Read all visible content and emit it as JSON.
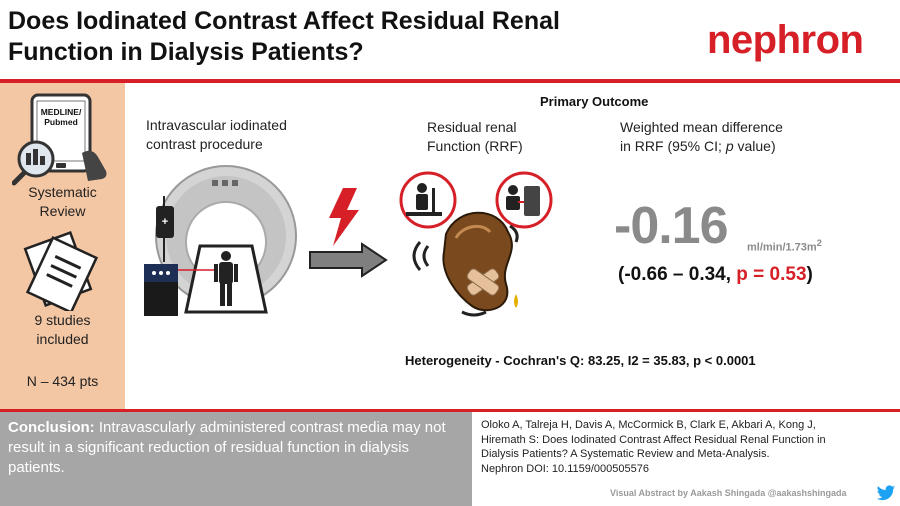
{
  "header": {
    "title_line1": "Does Iodinated Contrast Affect Residual Renal",
    "title_line2": "Function in Dialysis Patients?",
    "brand": "nephron"
  },
  "sidebar": {
    "tablet_line1": "MEDLINE/",
    "tablet_line2": "Pubmed",
    "review_line1": "Systematic",
    "review_line2": "Review",
    "studies_line1": "9 studies",
    "studies_line2": "included",
    "patients": "N – 434 pts"
  },
  "main": {
    "procedure_line1": "Intravascular iodinated",
    "procedure_line2": "contrast procedure",
    "rrf_line1": "Residual renal",
    "rrf_line2": "Function (RRF)",
    "primary_outcome": "Primary Outcome",
    "wmd_line1": "Weighted mean difference",
    "wmd_line2_pre": "in RRF (95% CI; ",
    "wmd_line2_p": "p",
    "wmd_line2_post": " value)",
    "big_value": "-0.16",
    "unit": "ml/min/1.73m",
    "unit_sup": "2",
    "ci_text": "(-0.66 – 0.34, ",
    "p_text": "p = 0.53",
    "ci_close": ")",
    "heterogeneity": "Heterogeneity  - Cochran's Q: 83.25, I2 = 35.83, p < 0.0001"
  },
  "conclusion": {
    "label": "Conclusion:",
    "text": " Intravascularly administered contrast media may not result in a significant reduction of residual function in dialysis patients."
  },
  "citation": {
    "line1": "Oloko A, Talreja H, Davis A, McCormick B, Clark E, Akbari A, Kong J,",
    "line2": "Hiremath S: Does Iodinated Contrast Affect Residual Renal Function in",
    "line3": "Dialysis Patients? A Systematic Review and Meta-Analysis.",
    "line4": "Nephron DOI: 10.1159/000505576"
  },
  "credit": "Visual Abstract by Aakash Shingada @aakashshingada",
  "icons": [
    "tablet-search-icon",
    "documents-icon",
    "ct-scanner-icon",
    "lightning-icon",
    "arrow-icon",
    "kidney-icon",
    "dialysis-icon",
    "twitter-icon"
  ],
  "colors": {
    "accent": "#d61f26",
    "sidebar": "#f4c7a4",
    "conclusion_bg": "#a6a6a6",
    "value_gray": "#8a8a8a"
  }
}
